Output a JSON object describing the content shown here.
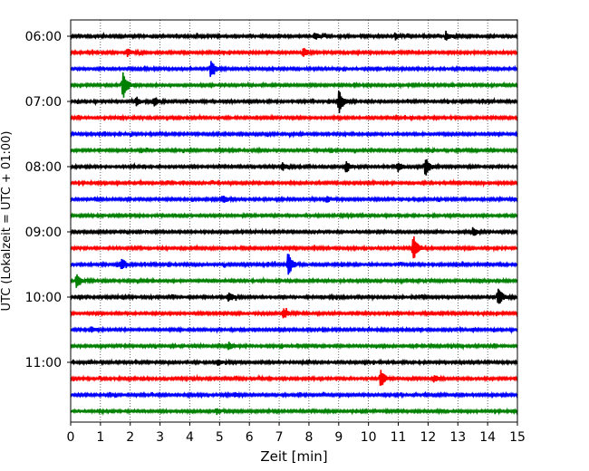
{
  "chart_data": {
    "type": "line",
    "subtype": "helicorder-seismogram",
    "xlabel": "Zeit  [min]",
    "ylabel": "UTC (Lokalzeit = UTC + 01:00)",
    "xlim": [
      0,
      15
    ],
    "x_ticks": [
      0,
      1,
      2,
      3,
      4,
      5,
      6,
      7,
      8,
      9,
      10,
      11,
      12,
      13,
      14,
      15
    ],
    "grid_x": "dotted",
    "y_tick_labels": [
      "06:00",
      "07:00",
      "08:00",
      "09:00",
      "10:00",
      "11:00"
    ],
    "trace_start_minutes": 360,
    "trace_interval_minutes": 15,
    "trace_count": 24,
    "trace_colors": [
      "#000000",
      "#ff0000",
      "#0000ff",
      "#008000"
    ],
    "noise_level": 0.12,
    "events": [
      {
        "trace": 0,
        "minute": 8.2,
        "amplitude": 0.35
      },
      {
        "trace": 0,
        "minute": 10.9,
        "amplitude": 0.3
      },
      {
        "trace": 0,
        "minute": 12.6,
        "amplitude": 0.45
      },
      {
        "trace": 1,
        "minute": 1.9,
        "amplitude": 0.35
      },
      {
        "trace": 1,
        "minute": 7.8,
        "amplitude": 0.5
      },
      {
        "trace": 2,
        "minute": 4.7,
        "amplitude": 0.8
      },
      {
        "trace": 3,
        "minute": 1.75,
        "amplitude": 1.5
      },
      {
        "trace": 4,
        "minute": 2.2,
        "amplitude": 0.4
      },
      {
        "trace": 4,
        "minute": 2.8,
        "amplitude": 0.45
      },
      {
        "trace": 4,
        "minute": 9.0,
        "amplitude": 1.2
      },
      {
        "trace": 8,
        "minute": 7.1,
        "amplitude": 0.4
      },
      {
        "trace": 8,
        "minute": 9.25,
        "amplitude": 0.55
      },
      {
        "trace": 8,
        "minute": 11.0,
        "amplitude": 0.45
      },
      {
        "trace": 8,
        "minute": 11.9,
        "amplitude": 0.95
      },
      {
        "trace": 10,
        "minute": 5.1,
        "amplitude": 0.4
      },
      {
        "trace": 10,
        "minute": 8.6,
        "amplitude": 0.3
      },
      {
        "trace": 12,
        "minute": 13.5,
        "amplitude": 0.45
      },
      {
        "trace": 13,
        "minute": 11.5,
        "amplitude": 1.3
      },
      {
        "trace": 14,
        "minute": 1.7,
        "amplitude": 0.6
      },
      {
        "trace": 14,
        "minute": 7.3,
        "amplitude": 1.2
      },
      {
        "trace": 15,
        "minute": 0.2,
        "amplitude": 0.7
      },
      {
        "trace": 16,
        "minute": 5.3,
        "amplitude": 0.5
      },
      {
        "trace": 16,
        "minute": 14.35,
        "amplitude": 1.0
      },
      {
        "trace": 17,
        "minute": 7.15,
        "amplitude": 0.55
      },
      {
        "trace": 18,
        "minute": 0.7,
        "amplitude": 0.3
      },
      {
        "trace": 19,
        "minute": 5.3,
        "amplitude": 0.4
      },
      {
        "trace": 20,
        "minute": 4.95,
        "amplitude": 0.3
      },
      {
        "trace": 21,
        "minute": 10.4,
        "amplitude": 1.0
      },
      {
        "trace": 21,
        "minute": 12.2,
        "amplitude": 0.35
      },
      {
        "trace": 22,
        "minute": 5.5,
        "amplitude": 0.25
      },
      {
        "trace": 23,
        "minute": 4.9,
        "amplitude": 0.3
      }
    ]
  }
}
